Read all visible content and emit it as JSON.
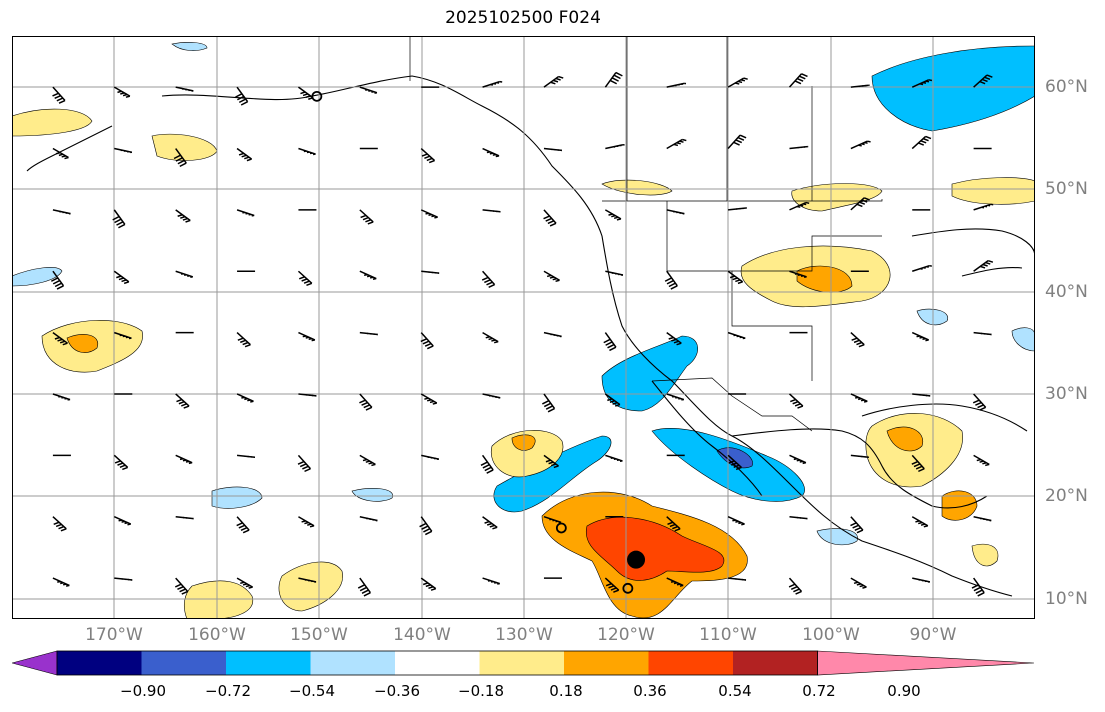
{
  "title": "2025102500 F024",
  "x_axis": {
    "ticks": [
      {
        "value": -170,
        "label": "170°W"
      },
      {
        "value": -160,
        "label": "160°W"
      },
      {
        "value": -150,
        "label": "150°W"
      },
      {
        "value": -140,
        "label": "140°W"
      },
      {
        "value": -130,
        "label": "130°W"
      },
      {
        "value": -120,
        "label": "120°W"
      },
      {
        "value": -110,
        "label": "110°W"
      },
      {
        "value": -100,
        "label": "100°W"
      },
      {
        "value": -90,
        "label": "90°W"
      }
    ]
  },
  "y_axis": {
    "ticks": [
      {
        "value": 60,
        "label": "60°N"
      },
      {
        "value": 50,
        "label": "50°N"
      },
      {
        "value": 40,
        "label": "40°N"
      },
      {
        "value": 30,
        "label": "30°N"
      },
      {
        "value": 20,
        "label": "20°N"
      },
      {
        "value": 10,
        "label": "10°N"
      }
    ]
  },
  "extent": {
    "lon_min": -180,
    "lon_max": -80,
    "lat_min": 8,
    "lat_max": 65
  },
  "colorbar": {
    "labels": [
      "−0.90",
      "−0.72",
      "−0.54",
      "−0.36",
      "−0.18",
      "0.18",
      "0.36",
      "0.54",
      "0.72",
      "0.90"
    ],
    "colors": [
      "#9932cc",
      "#000080",
      "#3a5fcd",
      "#00bfff",
      "#b0e2ff",
      "#ffffff",
      "#ffec8b",
      "#ffa500",
      "#ff4500",
      "#b22222",
      "#ff88aa"
    ]
  },
  "map_data": {
    "markers": [
      {
        "type": "filled-dot",
        "lon": -119,
        "lat": 13.8
      },
      {
        "type": "open-circle",
        "lon": -126.3,
        "lat": 16.9
      },
      {
        "type": "open-circle",
        "lon": -119.8,
        "lat": 11.0
      },
      {
        "type": "open-circle",
        "lon": -150.2,
        "lat": 59.1
      }
    ]
  }
}
